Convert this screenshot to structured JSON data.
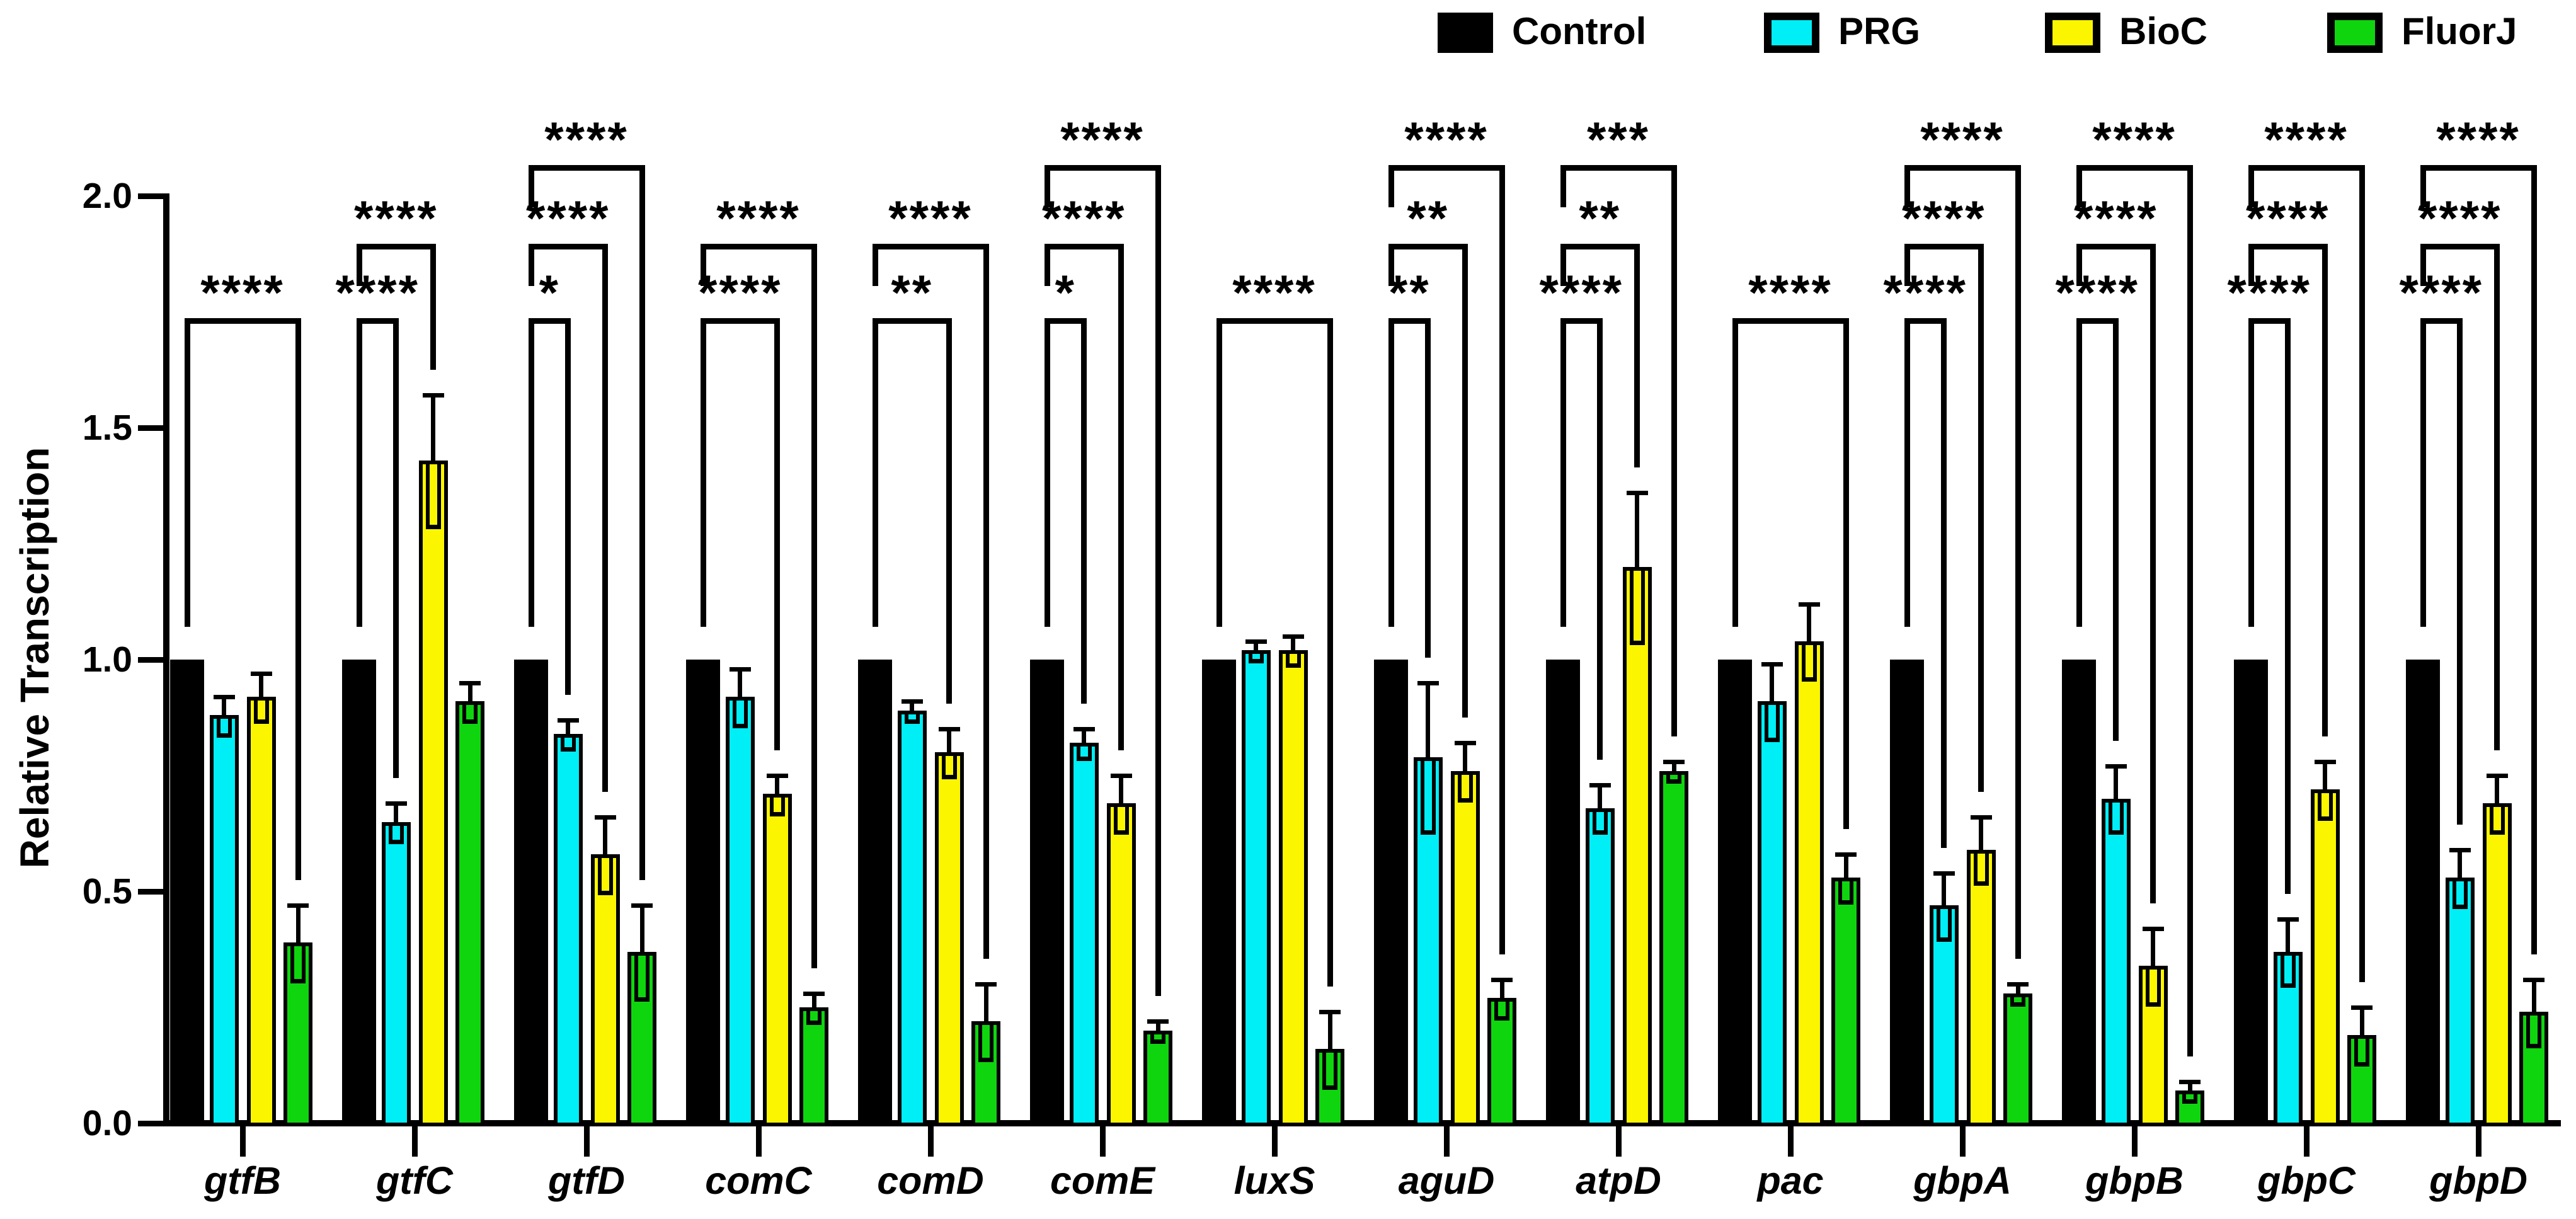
{
  "chart_data": {
    "type": "bar",
    "title": "",
    "xlabel": "",
    "ylabel": "Relative Transcription",
    "ylim": [
      0,
      2.0
    ],
    "yticks": [
      0.0,
      0.5,
      1.0,
      1.5,
      2.0
    ],
    "ytick_labels": [
      "0.0",
      "0.5",
      "1.0",
      "1.5",
      "2.0"
    ],
    "grid": false,
    "legend_position": "top-right-horizontal",
    "categories": [
      "gtfB",
      "gtfC",
      "gtfD",
      "comC",
      "comD",
      "comE",
      "luxS",
      "aguD",
      "atpD",
      "pac",
      "gbpA",
      "gbpB",
      "gbpC",
      "gbpD"
    ],
    "series": [
      {
        "name": "Control",
        "color": "#000000",
        "values": [
          1.0,
          1.0,
          1.0,
          1.0,
          1.0,
          1.0,
          1.0,
          1.0,
          1.0,
          1.0,
          1.0,
          1.0,
          1.0,
          1.0
        ],
        "errors": [
          0,
          0,
          0,
          0,
          0,
          0,
          0,
          0,
          0,
          0,
          0,
          0,
          0,
          0
        ]
      },
      {
        "name": "PRG",
        "color": "#00EEF5",
        "values": [
          0.88,
          0.65,
          0.84,
          0.92,
          0.89,
          0.82,
          1.02,
          0.79,
          0.68,
          0.91,
          0.47,
          0.7,
          0.37,
          0.53
        ],
        "errors": [
          0.04,
          0.04,
          0.03,
          0.06,
          0.02,
          0.03,
          0.02,
          0.16,
          0.05,
          0.08,
          0.07,
          0.07,
          0.07,
          0.06
        ]
      },
      {
        "name": "BioC",
        "color": "#FBF600",
        "values": [
          0.92,
          1.43,
          0.58,
          0.71,
          0.8,
          0.69,
          1.02,
          0.76,
          1.2,
          1.04,
          0.59,
          0.34,
          0.72,
          0.69
        ],
        "errors": [
          0.05,
          0.14,
          0.08,
          0.04,
          0.05,
          0.06,
          0.03,
          0.06,
          0.16,
          0.08,
          0.07,
          0.08,
          0.06,
          0.06
        ]
      },
      {
        "name": "FluorJ",
        "color": "#0FD50F",
        "values": [
          0.39,
          0.91,
          0.37,
          0.25,
          0.22,
          0.2,
          0.16,
          0.27,
          0.76,
          0.53,
          0.28,
          0.07,
          0.19,
          0.24
        ],
        "errors": [
          0.08,
          0.04,
          0.1,
          0.03,
          0.08,
          0.02,
          0.08,
          0.04,
          0.02,
          0.05,
          0.02,
          0.02,
          0.06,
          0.07
        ]
      }
    ],
    "significance_levels_y": {
      "1": 1.73,
      "2": 1.89,
      "3": 2.06
    },
    "significance": [
      {
        "category": "gtfB",
        "comparisons": [
          {
            "target": "FluorJ",
            "stars": "****",
            "level": 1
          }
        ]
      },
      {
        "category": "gtfC",
        "comparisons": [
          {
            "target": "PRG",
            "stars": "****",
            "level": 1
          },
          {
            "target": "BioC",
            "stars": "****",
            "level": 2
          }
        ]
      },
      {
        "category": "gtfD",
        "comparisons": [
          {
            "target": "PRG",
            "stars": "*",
            "level": 1
          },
          {
            "target": "BioC",
            "stars": "****",
            "level": 2
          },
          {
            "target": "FluorJ",
            "stars": "****",
            "level": 3
          }
        ]
      },
      {
        "category": "comC",
        "comparisons": [
          {
            "target": "BioC",
            "stars": "****",
            "level": 1
          },
          {
            "target": "FluorJ",
            "stars": "****",
            "level": 2
          }
        ]
      },
      {
        "category": "comD",
        "comparisons": [
          {
            "target": "BioC",
            "stars": "**",
            "level": 1
          },
          {
            "target": "FluorJ",
            "stars": "****",
            "level": 2
          }
        ]
      },
      {
        "category": "comE",
        "comparisons": [
          {
            "target": "PRG",
            "stars": "*",
            "level": 1
          },
          {
            "target": "BioC",
            "stars": "****",
            "level": 2
          },
          {
            "target": "FluorJ",
            "stars": "****",
            "level": 3
          }
        ]
      },
      {
        "category": "luxS",
        "comparisons": [
          {
            "target": "FluorJ",
            "stars": "****",
            "level": 1
          }
        ]
      },
      {
        "category": "aguD",
        "comparisons": [
          {
            "target": "PRG",
            "stars": "**",
            "level": 1
          },
          {
            "target": "BioC",
            "stars": "**",
            "level": 2
          },
          {
            "target": "FluorJ",
            "stars": "****",
            "level": 3
          }
        ]
      },
      {
        "category": "atpD",
        "comparisons": [
          {
            "target": "PRG",
            "stars": "****",
            "level": 1
          },
          {
            "target": "BioC",
            "stars": "**",
            "level": 2
          },
          {
            "target": "FluorJ",
            "stars": "***",
            "level": 3
          }
        ]
      },
      {
        "category": "pac",
        "comparisons": [
          {
            "target": "FluorJ",
            "stars": "****",
            "level": 1
          }
        ]
      },
      {
        "category": "gbpA",
        "comparisons": [
          {
            "target": "PRG",
            "stars": "****",
            "level": 1
          },
          {
            "target": "BioC",
            "stars": "****",
            "level": 2
          },
          {
            "target": "FluorJ",
            "stars": "****",
            "level": 3
          }
        ]
      },
      {
        "category": "gbpB",
        "comparisons": [
          {
            "target": "PRG",
            "stars": "****",
            "level": 1
          },
          {
            "target": "BioC",
            "stars": "****",
            "level": 2
          },
          {
            "target": "FluorJ",
            "stars": "****",
            "level": 3
          }
        ]
      },
      {
        "category": "gbpC",
        "comparisons": [
          {
            "target": "PRG",
            "stars": "****",
            "level": 1
          },
          {
            "target": "BioC",
            "stars": "****",
            "level": 2
          },
          {
            "target": "FluorJ",
            "stars": "****",
            "level": 3
          }
        ]
      },
      {
        "category": "gbpD",
        "comparisons": [
          {
            "target": "PRG",
            "stars": "****",
            "level": 1
          },
          {
            "target": "BioC",
            "stars": "****",
            "level": 2
          },
          {
            "target": "FluorJ",
            "stars": "****",
            "level": 3
          }
        ]
      }
    ],
    "legend": [
      {
        "label": "Control",
        "color": "#000000"
      },
      {
        "label": "PRG",
        "color": "#00EEF5"
      },
      {
        "label": "BioC",
        "color": "#FBF600"
      },
      {
        "label": "FluorJ",
        "color": "#0FD50F"
      }
    ]
  }
}
